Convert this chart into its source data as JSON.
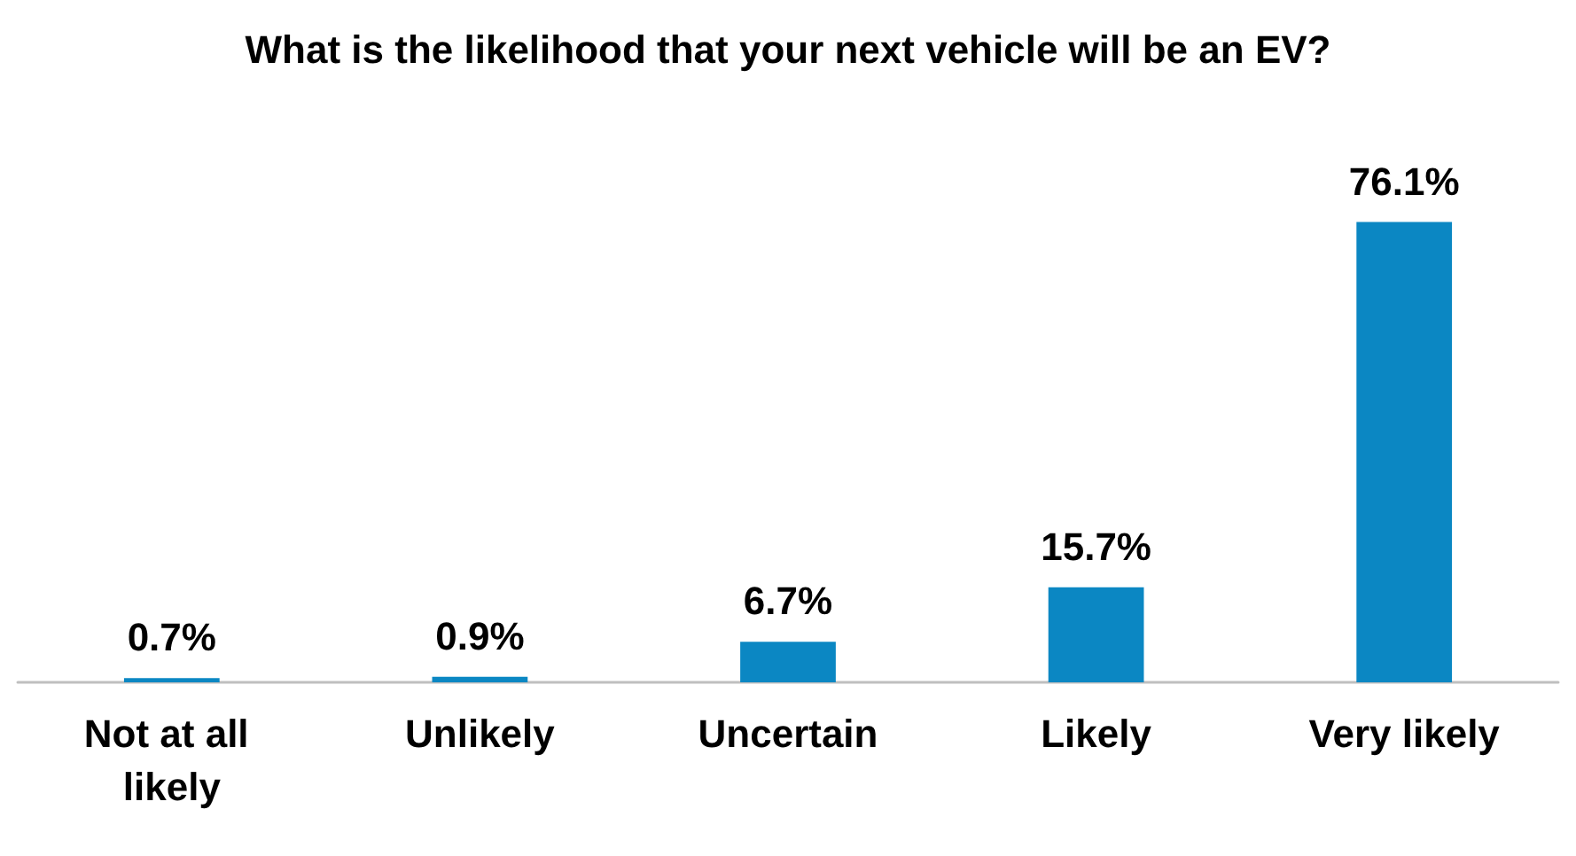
{
  "chart_data": {
    "type": "bar",
    "title": "What is the likelihood that your next vehicle will be an EV?",
    "categories": [
      "Not at all likely",
      "Unlikely",
      "Uncertain",
      "Likely",
      "Very likely"
    ],
    "values": [
      0.7,
      0.9,
      6.7,
      15.7,
      76.1
    ],
    "value_labels": [
      "0.7%",
      "0.9%",
      "6.7%",
      "15.7%",
      "76.1%"
    ],
    "color": "#0b87c3"
  }
}
